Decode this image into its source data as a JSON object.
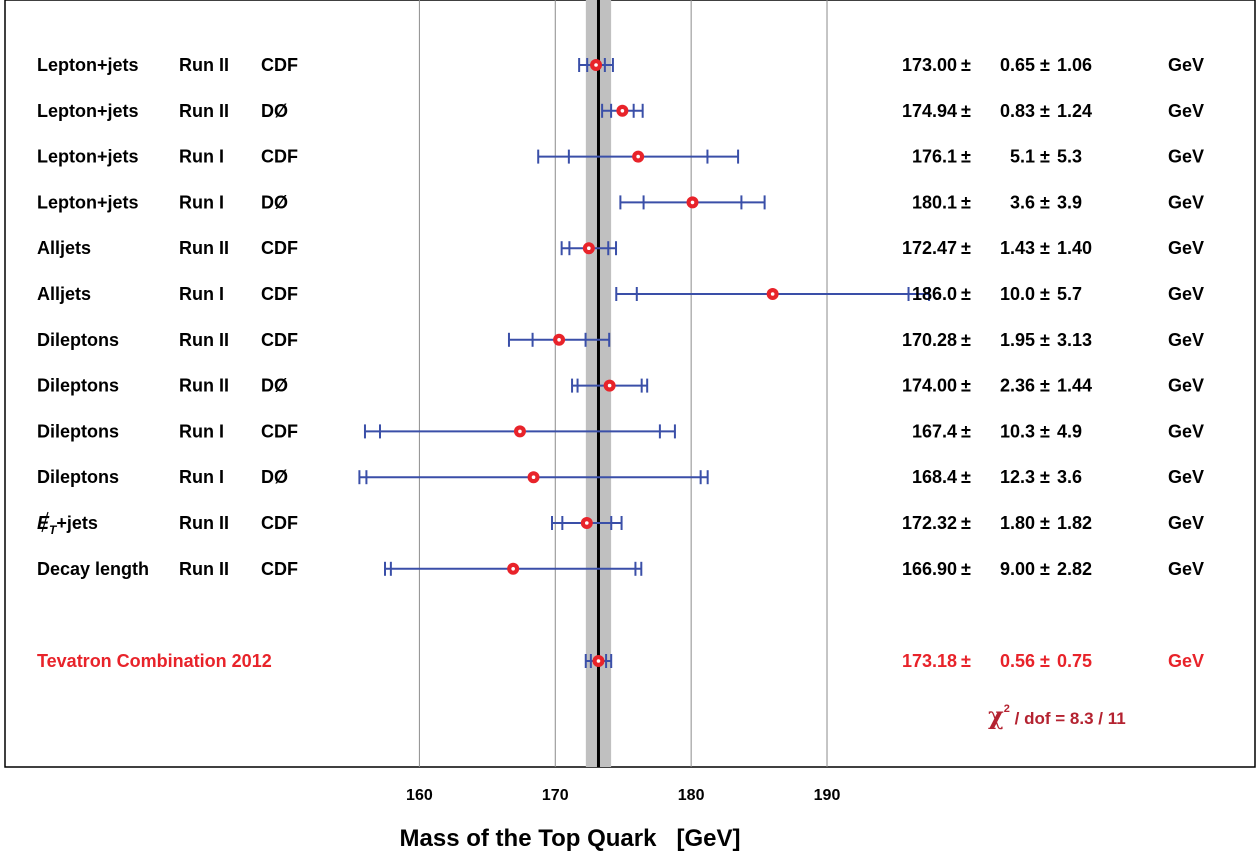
{
  "chart_data": {
    "type": "scatter",
    "title": "",
    "xlabel": "Mass of the Top Quark   [GeV]",
    "xlim": [
      129.5,
      221.5
    ],
    "xticks": [
      160,
      170,
      180,
      190
    ],
    "band": {
      "center": 173.18,
      "low": 172.25,
      "high": 174.11
    },
    "unit": "GeV",
    "rows": [
      {
        "channel": "Lepton+jets",
        "run": "Run II",
        "exp": "CDF",
        "value": 173.0,
        "stat": 0.65,
        "syst": 1.06,
        "mass_text": "173.00",
        "stat_text": "0.65",
        "syst_text": "1.06"
      },
      {
        "channel": "Lepton+jets",
        "run": "Run II",
        "exp": "DØ",
        "value": 174.94,
        "stat": 0.83,
        "syst": 1.24,
        "mass_text": "174.94",
        "stat_text": "0.83",
        "syst_text": "1.24"
      },
      {
        "channel": "Lepton+jets",
        "run": "Run I",
        "exp": "CDF",
        "value": 176.1,
        "stat": 5.1,
        "syst": 5.3,
        "mass_text": "176.1",
        "stat_text": "5.1",
        "syst_text": "5.3"
      },
      {
        "channel": "Lepton+jets",
        "run": "Run I",
        "exp": "DØ",
        "value": 180.1,
        "stat": 3.6,
        "syst": 3.9,
        "mass_text": "180.1",
        "stat_text": "3.6",
        "syst_text": "3.9"
      },
      {
        "channel": "Alljets",
        "run": "Run II",
        "exp": "CDF",
        "value": 172.47,
        "stat": 1.43,
        "syst": 1.4,
        "mass_text": "172.47",
        "stat_text": "1.43",
        "syst_text": "1.40"
      },
      {
        "channel": "Alljets",
        "run": "Run I",
        "exp": "CDF",
        "value": 186.0,
        "stat": 10.0,
        "syst": 5.7,
        "mass_text": "186.0",
        "stat_text": "10.0",
        "syst_text": "5.7"
      },
      {
        "channel": "Dileptons",
        "run": "Run II",
        "exp": "CDF",
        "value": 170.28,
        "stat": 1.95,
        "syst": 3.13,
        "mass_text": "170.28",
        "stat_text": "1.95",
        "syst_text": "3.13"
      },
      {
        "channel": "Dileptons",
        "run": "Run II",
        "exp": "DØ",
        "value": 174.0,
        "stat": 2.36,
        "syst": 1.44,
        "mass_text": "174.00",
        "stat_text": "2.36",
        "syst_text": "1.44"
      },
      {
        "channel": "Dileptons",
        "run": "Run I",
        "exp": "CDF",
        "value": 167.4,
        "stat": 10.3,
        "syst": 4.9,
        "mass_text": "167.4",
        "stat_text": "10.3",
        "syst_text": "4.9"
      },
      {
        "channel": "Dileptons",
        "run": "Run I",
        "exp": "DØ",
        "value": 168.4,
        "stat": 12.3,
        "syst": 3.6,
        "mass_text": "168.4",
        "stat_text": "12.3",
        "syst_text": "3.6"
      },
      {
        "channel": "MET+jets",
        "run": "Run II",
        "exp": "CDF",
        "value": 172.32,
        "stat": 1.8,
        "syst": 1.82,
        "mass_text": "172.32",
        "stat_text": "1.80",
        "syst_text": "1.82"
      },
      {
        "channel": "Decay length",
        "run": "Run II",
        "exp": "CDF",
        "value": 166.9,
        "stat": 9.0,
        "syst": 2.82,
        "mass_text": "166.90",
        "stat_text": "9.00",
        "syst_text": "2.82"
      }
    ],
    "combination": {
      "label": "Tevatron Combination 2012",
      "value": 173.18,
      "stat": 0.56,
      "syst": 0.75,
      "mass_text": "173.18",
      "stat_text": "0.56",
      "syst_text": "0.75"
    },
    "chi2": {
      "symbol": "χ",
      "exponent": "2",
      "text": " / dof = 8.3 / 11"
    },
    "colors": {
      "marker": "#e8232a",
      "errorbar": "#3a4fa8",
      "band": "#c0c0c0",
      "combination_text": "#e8232a",
      "chi2_text": "#b42230",
      "grid": "#8c8c8c"
    }
  }
}
